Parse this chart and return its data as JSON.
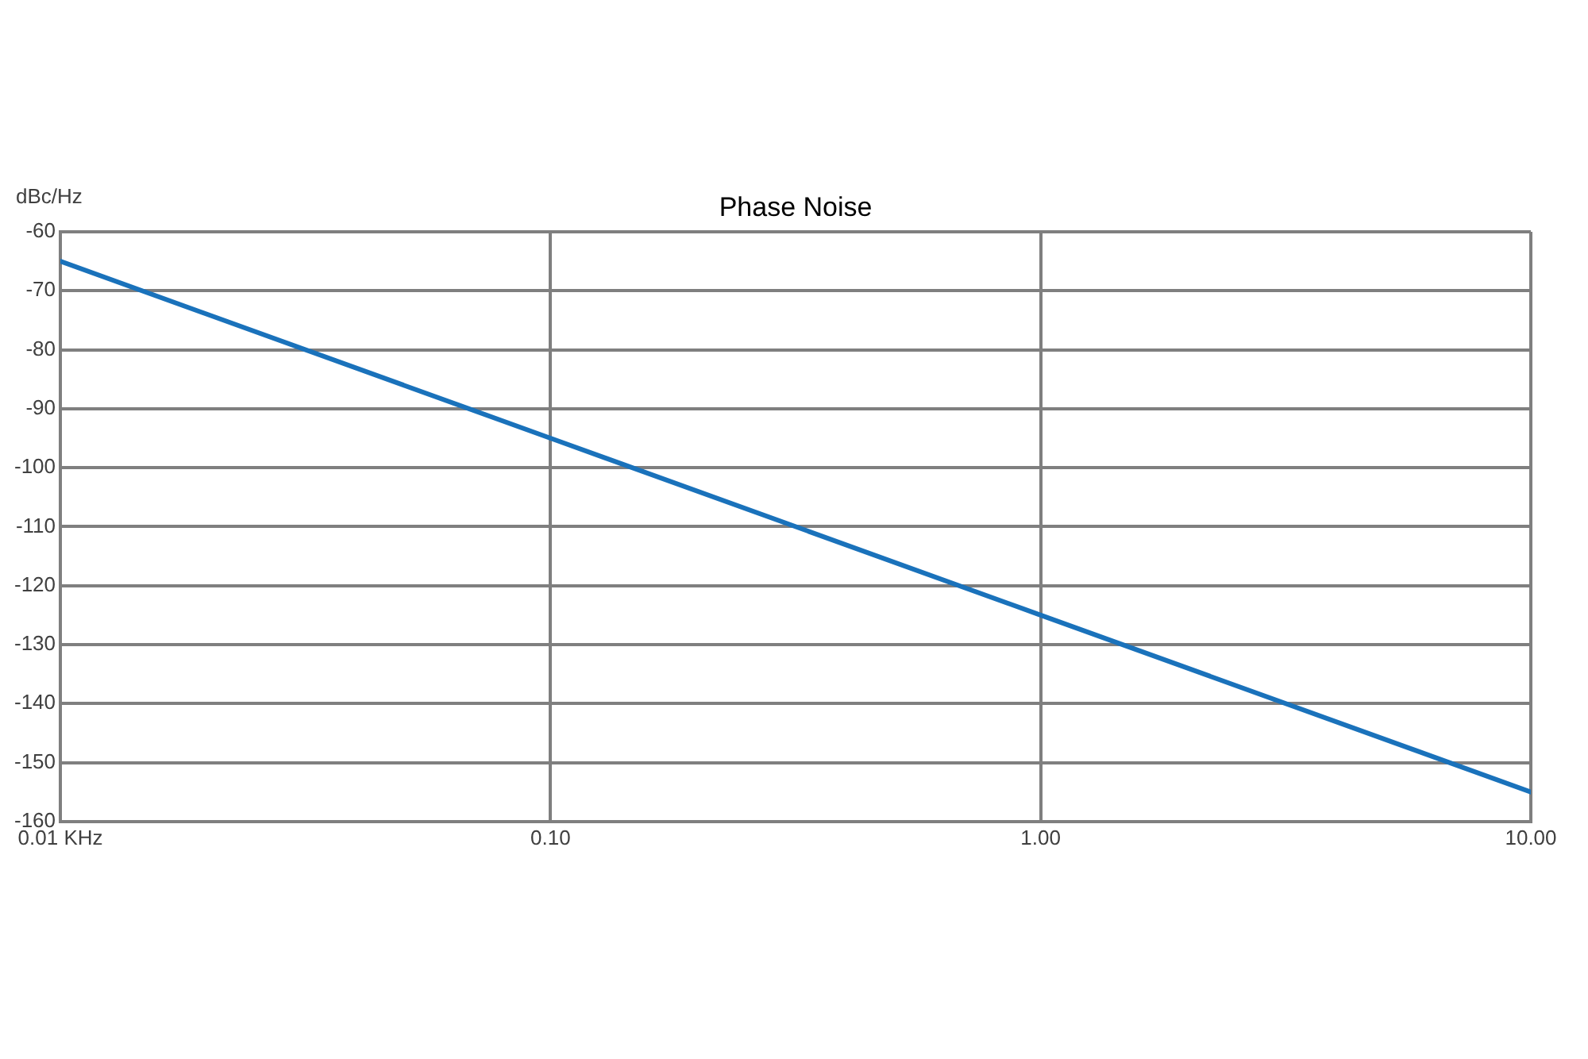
{
  "chart_data": {
    "type": "line",
    "title": "Phase Noise",
    "ylabel": "dBc/Hz",
    "x": [
      0.01,
      0.1,
      1,
      10
    ],
    "series": [
      {
        "color": "#1a72bb",
        "values": [
          -65,
          -95,
          -125,
          -155
        ]
      }
    ],
    "log": "x",
    "xlim": [
      0.01,
      10
    ],
    "xticks": [
      {
        "value": 0.01,
        "label": "0.01 KHz"
      },
      {
        "value": 0.1,
        "label": "0.10"
      },
      {
        "value": 1,
        "label": "1.00"
      },
      {
        "value": 10,
        "label": "10.00"
      }
    ],
    "ylim": [
      -160,
      -60
    ],
    "yticks": [
      -160,
      -150,
      -140,
      -130,
      -120,
      -110,
      -100,
      -90,
      -80,
      -70,
      -60
    ],
    "grid": true,
    "legend": false,
    "marker": "none",
    "line_style": "solid"
  }
}
